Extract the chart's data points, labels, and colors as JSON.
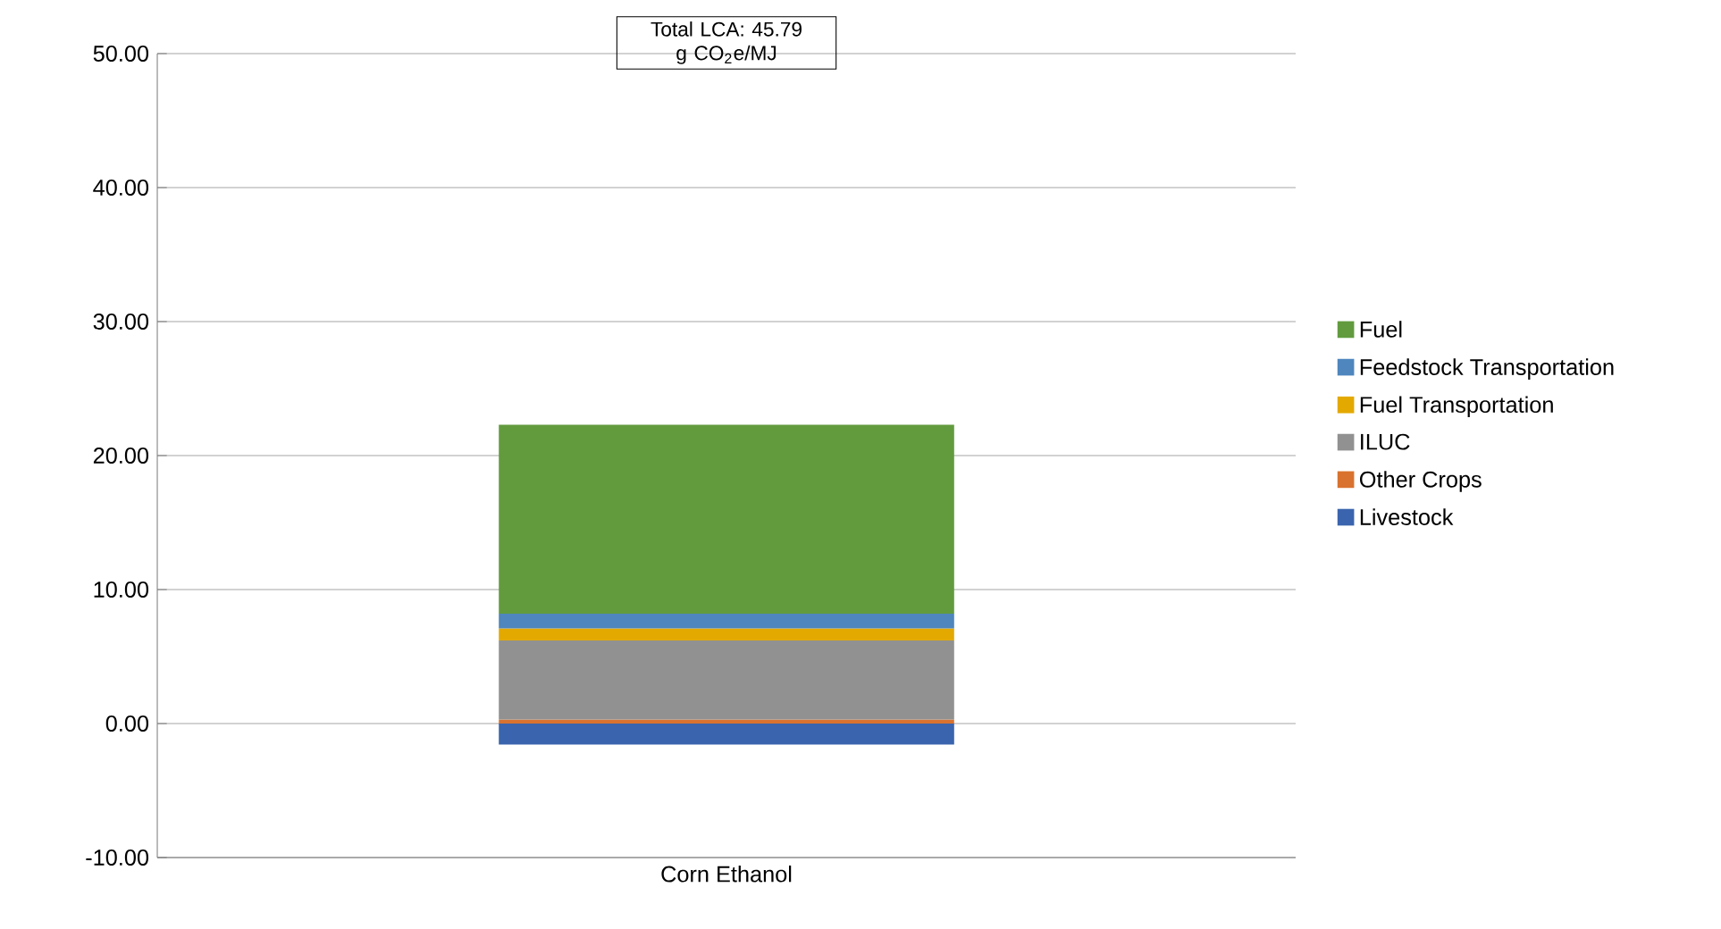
{
  "chart_data": {
    "type": "bar",
    "stacked": true,
    "categories": [
      "Corn Ethanol"
    ],
    "series": [
      {
        "name": "Livestock",
        "color": "#3a64ad",
        "values": [
          -1.56
        ]
      },
      {
        "name": "Other Crops",
        "color": "#d9722e",
        "values": [
          0.3
        ]
      },
      {
        "name": "ILUC",
        "color": "#919191",
        "values": [
          5.9
        ]
      },
      {
        "name": "Fuel Transportation",
        "color": "#e3a900",
        "values": [
          0.9
        ]
      },
      {
        "name": "Feedstock Transportation",
        "color": "#4e86bd",
        "values": [
          1.1
        ]
      },
      {
        "name": "Fuel",
        "color": "#629b3e",
        "values": [
          14.1
        ]
      }
    ],
    "ylim": [
      -10,
      50
    ],
    "yticks": [
      {
        "value": -10,
        "label": "-10.00"
      },
      {
        "value": 0,
        "label": "0.00"
      },
      {
        "value": 10,
        "label": "10.00"
      },
      {
        "value": 20,
        "label": "20.00"
      },
      {
        "value": 30,
        "label": "30.00"
      },
      {
        "value": 40,
        "label": "40.00"
      },
      {
        "value": 50,
        "label": "50.00"
      }
    ],
    "grid": "y",
    "legend": "right",
    "annotations": [
      "Total LCA: 45.79 g CO$_{2}$e/MJ"
    ]
  }
}
